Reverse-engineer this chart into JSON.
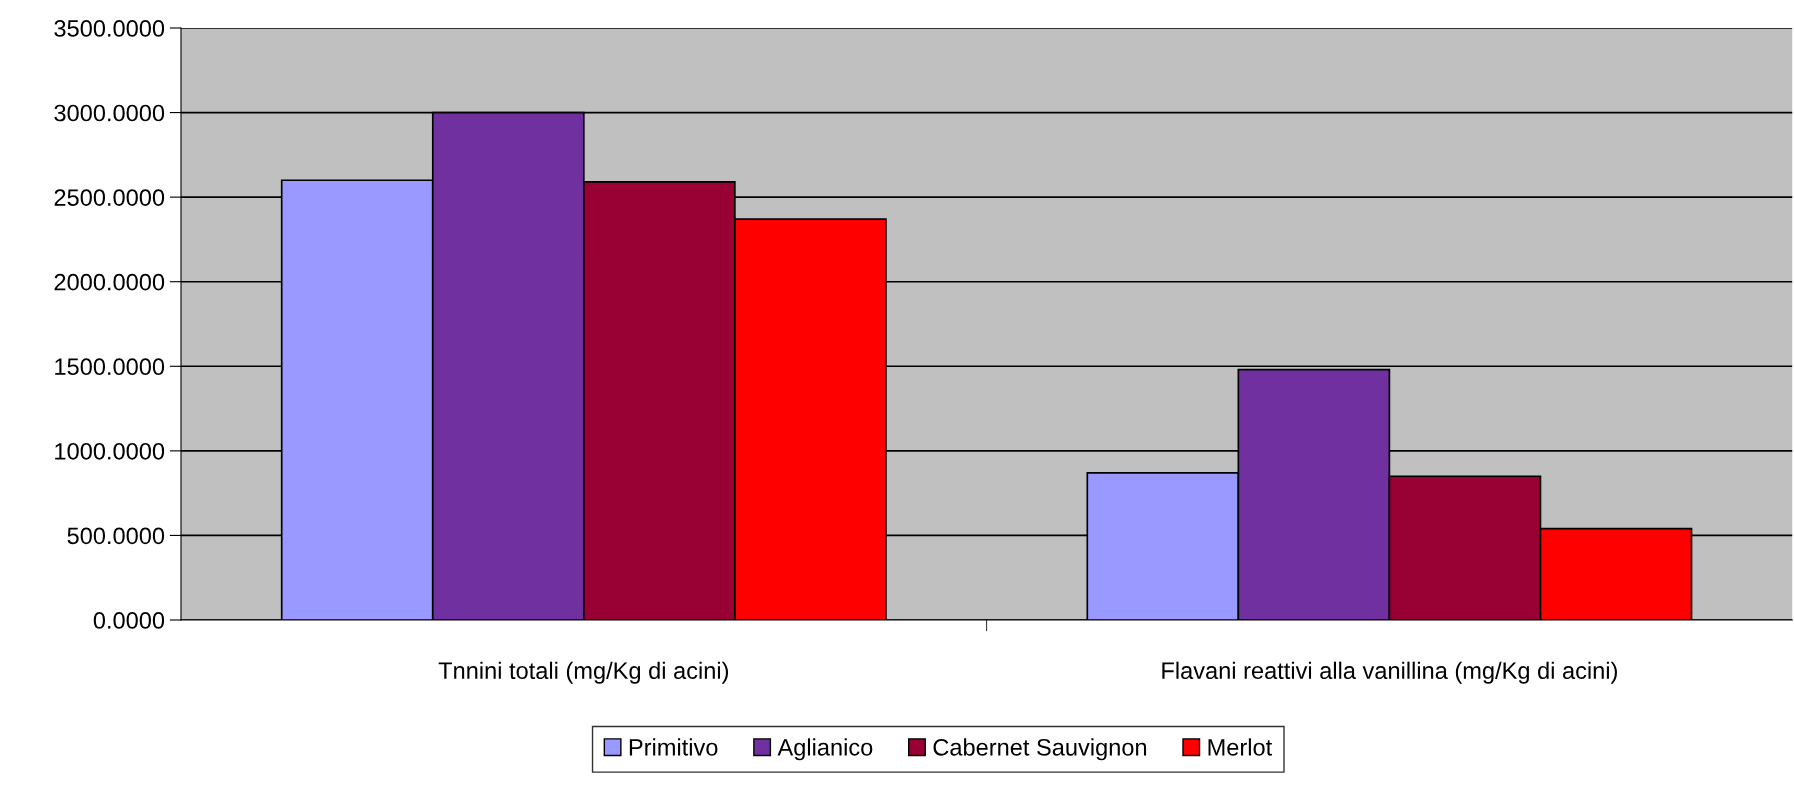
{
  "chart_data": {
    "type": "bar",
    "categories": [
      "Tnnini totali (mg/Kg di acini)",
      "Flavani reattivi alla vanillina (mg/Kg di acini)"
    ],
    "series": [
      {
        "name": "Primitivo",
        "color": "#9999ff",
        "values": [
          2600,
          870
        ]
      },
      {
        "name": "Aglianico",
        "color": "#7030a0",
        "values": [
          3000,
          1480
        ]
      },
      {
        "name": "Cabernet Sauvignon",
        "color": "#990033",
        "values": [
          2590,
          850
        ]
      },
      {
        "name": "Merlot",
        "color": "#ff0000",
        "values": [
          2370,
          540
        ]
      }
    ],
    "ylim": [
      0,
      3500
    ],
    "yticks": [
      {
        "value": 0,
        "label": "0.0000"
      },
      {
        "value": 500,
        "label": "500.0000"
      },
      {
        "value": 1000,
        "label": "1000.0000"
      },
      {
        "value": 1500,
        "label": "1500.0000"
      },
      {
        "value": 2000,
        "label": "2000.0000"
      },
      {
        "value": 2500,
        "label": "2500.0000"
      },
      {
        "value": 3000,
        "label": "3000.0000"
      },
      {
        "value": 3500,
        "label": "3500.0000"
      }
    ],
    "grid": "y",
    "legend": "bottom"
  }
}
